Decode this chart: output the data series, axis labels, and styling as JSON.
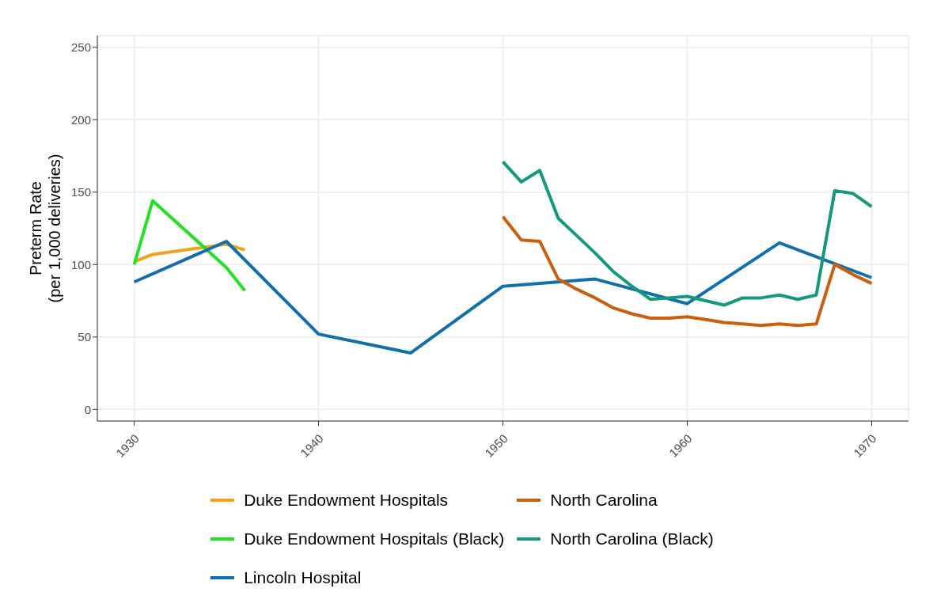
{
  "chart_data": {
    "type": "line",
    "ylabel": "Preterm Rate\n(per 1,000 deliveries)",
    "xlim": [
      1928,
      1972
    ],
    "xticks": [
      1930,
      1940,
      1950,
      1960,
      1970
    ],
    "ylim": [
      -8,
      258
    ],
    "yticks": [
      0,
      50,
      100,
      150,
      200,
      250
    ],
    "grid": true,
    "legend": "bottom",
    "line_style": "solid",
    "marker": "none",
    "series": [
      {
        "name": "Duke Endowment Hospitals",
        "color": "#f0a21e",
        "x": [
          1930,
          1931,
          1935,
          1936
        ],
        "values": [
          102,
          107,
          114,
          110
        ]
      },
      {
        "name": "Duke Endowment Hospitals (Black)",
        "color": "#22e022",
        "x": [
          1930,
          1931,
          1935,
          1936
        ],
        "values": [
          100,
          144,
          98,
          82
        ]
      },
      {
        "name": "Lincoln Hospital",
        "color": "#1170aa",
        "x": [
          1930,
          1935,
          1940,
          1945,
          1950,
          1955,
          1960,
          1965,
          1970
        ],
        "values": [
          88,
          116,
          52,
          39,
          85,
          90,
          73,
          115,
          91
        ]
      },
      {
        "name": "North Carolina",
        "color": "#c8600f",
        "x": [
          1950,
          1951,
          1952,
          1953,
          1954,
          1955,
          1956,
          1957,
          1958,
          1959,
          1960,
          1961,
          1962,
          1963,
          1964,
          1965,
          1966,
          1967,
          1968,
          1969,
          1970
        ],
        "values": [
          133,
          117,
          116,
          90,
          83,
          77,
          70,
          66,
          63,
          63,
          64,
          62,
          60,
          59,
          58,
          59,
          58,
          59,
          100,
          93,
          87
        ]
      },
      {
        "name": "North Carolina (Black)",
        "color": "#14997a",
        "x": [
          1950,
          1951,
          1952,
          1953,
          1954,
          1955,
          1956,
          1957,
          1958,
          1959,
          1960,
          1961,
          1962,
          1963,
          1964,
          1965,
          1966,
          1967,
          1968,
          1969,
          1970
        ],
        "values": [
          171,
          157,
          165,
          132,
          120,
          108,
          95,
          85,
          76,
          77,
          78,
          75,
          72,
          77,
          77,
          79,
          76,
          79,
          151,
          149,
          140
        ]
      }
    ]
  }
}
